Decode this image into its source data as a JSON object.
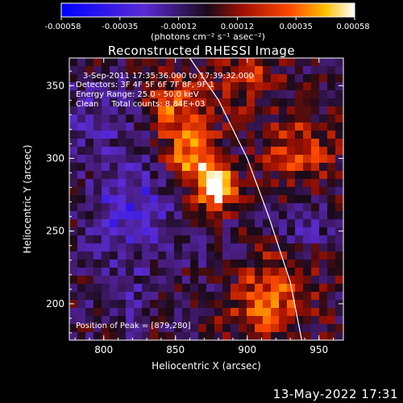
{
  "chart_data": {
    "type": "heatmap",
    "title": "Reconstructed RHESSI Image",
    "xlabel": "Heliocentric X (arcsec)",
    "ylabel": "Heliocentric Y (arcsec)",
    "xlim": [
      776,
      967
    ],
    "ylim": [
      175,
      369
    ],
    "x_ticks": [
      800,
      850,
      900,
      950
    ],
    "y_ticks": [
      200,
      250,
      300,
      350
    ],
    "colorbar": {
      "ticks": [
        "-0.00058",
        "-0.00035",
        "-0.00012",
        "0.00012",
        "0.00035",
        "0.00058"
      ],
      "range": [
        -0.00058,
        0.00058
      ],
      "unit_label": "(photons cm⁻² s⁻¹ asec⁻²)"
    },
    "info_lines": [
      "3-Sep-2011 17:35:36.000 to 17:39:32.000",
      "Detectors: 3F 4F 5F 6F 7F 8F, 9F 1",
      "Energy Range: 25.0 - 50.0 keV",
      "Clean     Total counts: 8.84E+03"
    ],
    "peak_label": "Position of Peak = [879,280]",
    "peak": {
      "x": 879,
      "y": 280
    },
    "limb_curve": [
      [
        860,
        369
      ],
      [
        880,
        340
      ],
      [
        900,
        300
      ],
      [
        915,
        260
      ],
      [
        930,
        215
      ],
      [
        938,
        175
      ]
    ]
  },
  "footer": "13-May-2022 17:31"
}
